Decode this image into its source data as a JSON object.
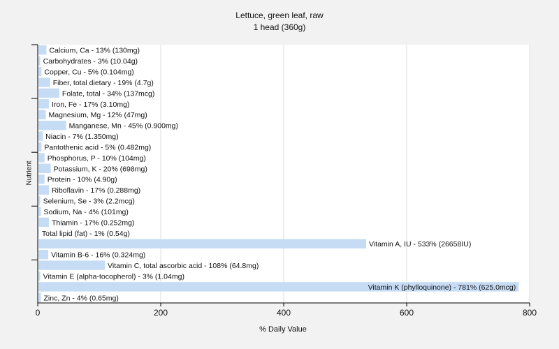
{
  "chart_data": {
    "type": "bar",
    "orientation": "horizontal",
    "title": "Lettuce, green leaf, raw",
    "subtitle": "1 head (360g)",
    "xlabel": "% Daily Value",
    "ylabel": "Nutrient",
    "xlim": [
      0,
      800
    ],
    "xticks": [
      0,
      200,
      400,
      600,
      800
    ],
    "grid": true,
    "bar_color": "#c6dcf5",
    "categories": [
      "Calcium, Ca",
      "Carbohydrates",
      "Copper, Cu",
      "Fiber, total dietary",
      "Folate, total",
      "Iron, Fe",
      "Magnesium, Mg",
      "Manganese, Mn",
      "Niacin",
      "Pantothenic acid",
      "Phosphorus, P",
      "Potassium, K",
      "Protein",
      "Riboflavin",
      "Selenium, Se",
      "Sodium, Na",
      "Thiamin",
      "Total lipid (fat)",
      "Vitamin A, IU",
      "Vitamin B-6",
      "Vitamin C, total ascorbic acid",
      "Vitamin E (alpha-tocopherol)",
      "Vitamin K (phylloquinone)",
      "Zinc, Zn"
    ],
    "values": [
      13,
      3,
      5,
      19,
      34,
      17,
      12,
      45,
      7,
      5,
      10,
      20,
      10,
      17,
      3,
      4,
      17,
      1,
      533,
      16,
      108,
      3,
      781,
      4
    ],
    "labels": [
      "Calcium, Ca - 13% (130mg)",
      "Carbohydrates - 3% (10.04g)",
      "Copper, Cu - 5% (0.104mg)",
      "Fiber, total dietary - 19% (4.7g)",
      "Folate, total - 34% (137mcg)",
      "Iron, Fe - 17% (3.10mg)",
      "Magnesium, Mg - 12% (47mg)",
      "Manganese, Mn - 45% (0.900mg)",
      "Niacin - 7% (1.350mg)",
      "Pantothenic acid - 5% (0.482mg)",
      "Phosphorus, P - 10% (104mg)",
      "Potassium, K - 20% (698mg)",
      "Protein - 10% (4.90g)",
      "Riboflavin - 17% (0.288mg)",
      "Selenium, Se - 3% (2.2mcg)",
      "Sodium, Na - 4% (101mg)",
      "Thiamin - 17% (0.252mg)",
      "Total lipid (fat) - 1% (0.54g)",
      "Vitamin A, IU - 533% (26658IU)",
      "Vitamin B-6 - 16% (0.324mg)",
      "Vitamin C, total ascorbic acid - 108% (64.8mg)",
      "Vitamin E (alpha-tocopherol) - 3% (1.04mg)",
      "Vitamin K (phylloquinone) - 781% (625.0mcg)",
      "Zinc, Zn - 4% (0.65mg)"
    ]
  }
}
